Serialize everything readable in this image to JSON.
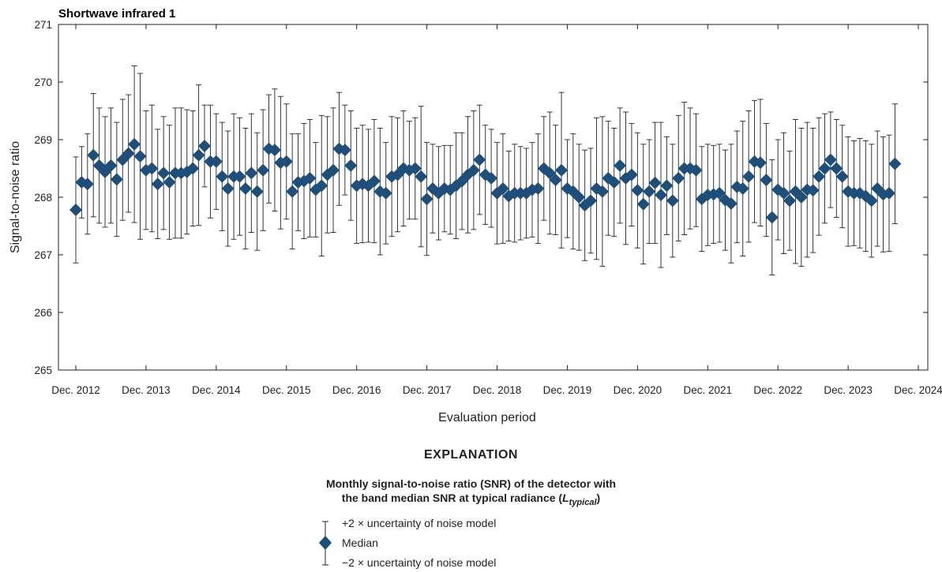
{
  "chart_data": {
    "type": "scatter",
    "title": "Shortwave infrared 1",
    "xlabel": "Evaluation period",
    "ylabel": "Signal-to-noise ratio",
    "ylim": [
      265,
      271
    ],
    "yticks": [
      265,
      266,
      267,
      268,
      269,
      270,
      271
    ],
    "xticks": [
      "Dec. 2012",
      "Dec. 2013",
      "Dec. 2014",
      "Dec. 2015",
      "Dec. 2016",
      "Dec. 2017",
      "Dec. 2018",
      "Dec. 2019",
      "Dec. 2020",
      "Dec. 2021",
      "Dec. 2022",
      "Dec. 2023",
      "Dec. 2024"
    ],
    "x_start": "Dec. 2012",
    "x_step": "1 month",
    "series": [
      {
        "name": "Median",
        "color": "#1f4e79",
        "median": [
          267.78,
          268.26,
          268.23,
          268.73,
          268.55,
          268.44,
          268.55,
          268.31,
          268.65,
          268.76,
          268.92,
          268.71,
          268.47,
          268.5,
          268.23,
          268.42,
          268.26,
          268.42,
          268.42,
          268.44,
          268.5,
          268.73,
          268.89,
          268.62,
          268.62,
          268.36,
          268.15,
          268.36,
          268.36,
          268.15,
          268.42,
          268.1,
          268.47,
          268.84,
          268.82,
          268.6,
          268.62,
          268.1,
          268.26,
          268.28,
          268.33,
          268.13,
          268.2,
          268.39,
          268.47,
          268.84,
          268.82,
          268.55,
          268.2,
          268.23,
          268.2,
          268.28,
          268.1,
          268.07,
          268.36,
          268.39,
          268.5,
          268.47,
          268.5,
          268.36,
          267.97,
          268.15,
          268.07,
          268.15,
          268.13,
          268.2,
          268.28,
          268.39,
          268.47,
          268.65,
          268.39,
          268.33,
          268.07,
          268.15,
          268.02,
          268.07,
          268.07,
          268.07,
          268.13,
          268.15,
          268.5,
          268.42,
          268.3,
          268.47,
          268.15,
          268.1,
          268.0,
          267.86,
          267.94,
          268.15,
          268.1,
          268.33,
          268.26,
          268.55,
          268.33,
          268.39,
          268.12,
          267.88,
          268.1,
          268.25,
          268.04,
          268.2,
          267.94,
          268.33,
          268.5,
          268.5,
          268.47,
          267.97,
          268.04,
          268.05,
          268.07,
          267.95,
          267.89,
          268.18,
          268.15,
          268.36,
          268.62,
          268.6,
          268.3,
          267.65,
          268.13,
          268.07,
          267.94,
          268.1,
          268.0,
          268.13,
          268.12,
          268.36,
          268.5,
          268.65,
          268.5,
          268.36,
          268.1,
          268.07,
          268.07,
          268.02,
          267.94,
          268.15,
          268.05,
          268.07,
          268.58
        ],
        "upper": [
          268.7,
          268.88,
          269.1,
          269.8,
          269.55,
          269.4,
          269.55,
          269.3,
          269.7,
          269.78,
          270.28,
          270.15,
          269.5,
          269.6,
          269.18,
          269.4,
          269.25,
          269.55,
          269.55,
          269.52,
          269.5,
          269.95,
          269.6,
          269.6,
          269.45,
          269.3,
          269.15,
          269.45,
          269.38,
          269.2,
          269.45,
          269.12,
          269.52,
          269.78,
          269.88,
          269.75,
          269.62,
          269.1,
          269.1,
          269.28,
          269.35,
          268.95,
          269.42,
          269.4,
          269.55,
          269.82,
          269.6,
          269.5,
          269.2,
          269.25,
          269.18,
          269.35,
          269.2,
          268.95,
          269.4,
          269.38,
          269.5,
          269.32,
          269.38,
          269.58,
          268.95,
          268.92,
          268.88,
          268.9,
          268.9,
          269.12,
          269.12,
          269.4,
          269.5,
          269.6,
          269.25,
          269.18,
          268.95,
          269.1,
          268.8,
          268.92,
          268.88,
          268.85,
          268.95,
          269.1,
          269.4,
          269.48,
          269.25,
          269.82,
          269.0,
          269.1,
          268.92,
          268.82,
          268.85,
          269.38,
          269.4,
          269.32,
          269.2,
          269.55,
          269.48,
          269.28,
          269.12,
          268.92,
          269.0,
          269.3,
          269.3,
          269.05,
          268.92,
          269.42,
          269.65,
          269.55,
          269.45,
          268.88,
          268.92,
          268.9,
          268.92,
          268.82,
          268.92,
          269.15,
          269.32,
          269.5,
          269.68,
          269.7,
          269.28,
          268.65,
          269.0,
          269.12,
          268.8,
          269.35,
          269.2,
          269.3,
          269.2,
          269.38,
          269.45,
          269.48,
          269.35,
          269.25,
          269.05,
          268.98,
          269.02,
          268.98,
          268.92,
          269.15,
          269.05,
          269.08,
          269.62
        ]
      }
    ]
  },
  "explanation": {
    "heading": "EXPLANATION",
    "description_line1": "Monthly signal-to-noise ratio (SNR) of the detector with",
    "description_line2": "the band median SNR at typical radiance (",
    "description_symbol": "L",
    "description_subscript": "typical",
    "description_end": ")",
    "upper_label": "+2 × uncertainty of noise model",
    "median_label": "Median",
    "lower_label": "−2 × uncertainty of noise model"
  }
}
